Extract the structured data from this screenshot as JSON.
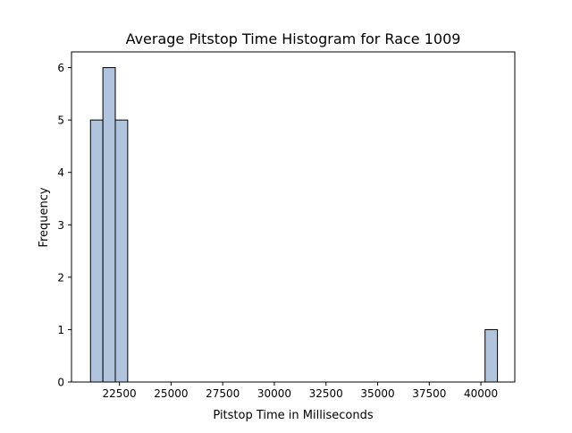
{
  "chart_data": {
    "type": "bar",
    "title": "Average Pitstop Time Histogram for Race 1009",
    "xlabel": "Pitstop Time in Milliseconds",
    "ylabel": "Frequency",
    "xlim": [
      20180,
      41640
    ],
    "ylim": [
      0,
      6.3
    ],
    "xticks": [
      22500,
      25000,
      27500,
      30000,
      32500,
      35000,
      37500,
      40000
    ],
    "yticks": [
      0,
      1,
      2,
      3,
      4,
      5,
      6
    ],
    "bar_color": "#b0c4de",
    "edge_color": "#000000",
    "grid": false,
    "bins": [
      {
        "x0": 21100,
        "x1": 21700,
        "count": 5
      },
      {
        "x0": 21700,
        "x1": 22300,
        "count": 6
      },
      {
        "x0": 22300,
        "x1": 22900,
        "count": 5
      },
      {
        "x0": 40200,
        "x1": 40800,
        "count": 1
      }
    ]
  }
}
